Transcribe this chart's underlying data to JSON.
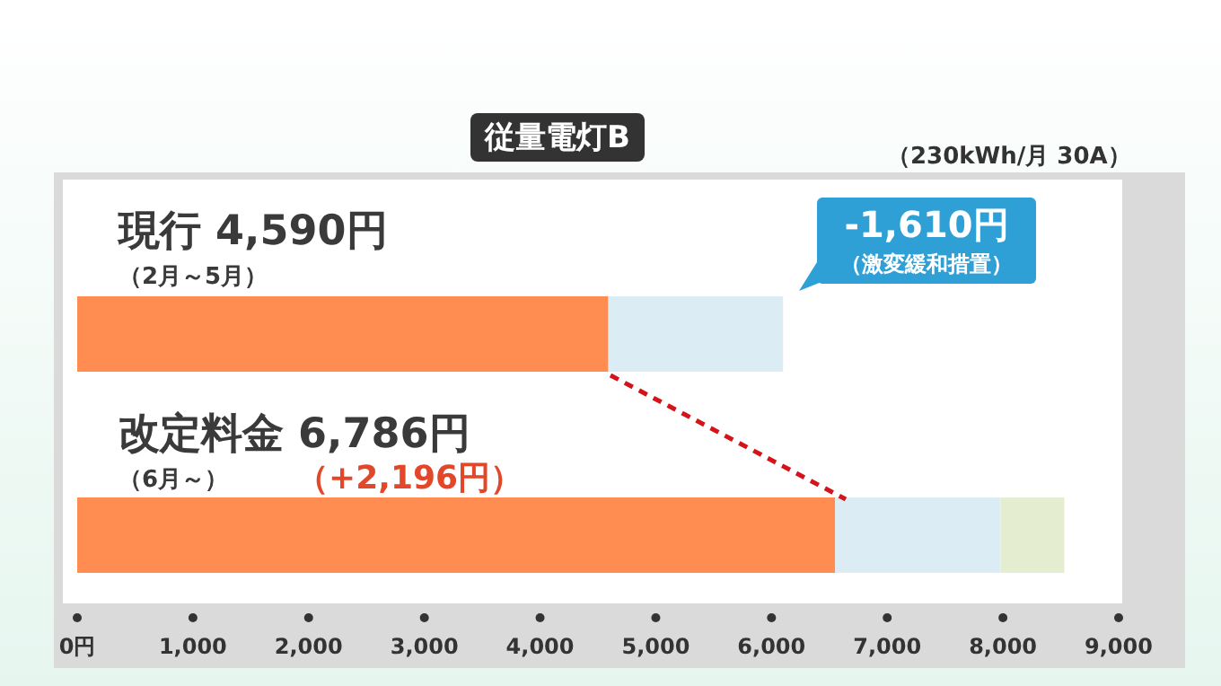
{
  "chart_data": {
    "type": "bar",
    "orientation": "horizontal",
    "stacked": true,
    "title": "従量電灯B",
    "subtitle": "（230kWh/月 30A）",
    "categories": [
      null,
      null
    ],
    "series": [
      {
        "color": "#ff8c50",
        "values": [
          4590,
          6550
        ]
      },
      {
        "color": "#dcecf4",
        "values": [
          1510,
          1430
        ]
      },
      {
        "color": "#e4edd0",
        "values": [
          null,
          550
        ]
      }
    ],
    "xlim": [
      0,
      9000
    ],
    "xticks": [
      {
        "value": 0,
        "label": "0円"
      },
      {
        "value": 1000,
        "label": "1,000"
      },
      {
        "value": 2000,
        "label": "2,000"
      },
      {
        "value": 3000,
        "label": "3,000"
      },
      {
        "value": 4000,
        "label": "4,000"
      },
      {
        "value": 5000,
        "label": "5,000"
      },
      {
        "value": 6000,
        "label": "6,000"
      },
      {
        "value": 7000,
        "label": "7,000"
      },
      {
        "value": 8000,
        "label": "8,000"
      },
      {
        "value": 9000,
        "label": "9,000"
      }
    ],
    "tick_labels": "x",
    "grid": false,
    "legend": false,
    "annotations": [
      "現行 4,590円",
      "（2月～5月）",
      "-1,610円",
      "（激変緩和措置）",
      "改定料金 6,786円",
      "（6月～）",
      "（+2,196円）"
    ]
  }
}
